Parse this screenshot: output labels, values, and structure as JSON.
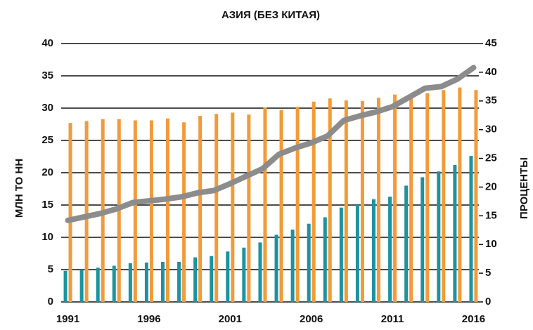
{
  "chart_data": {
    "type": "bar_line",
    "title": "АЗИЯ (БЕЗ КИТАЯ)",
    "ylabel": "МЛН ТО НН",
    "y2label": "ПРОЦЕНТЫ",
    "categories": [
      "1991",
      null,
      null,
      null,
      null,
      "1996",
      null,
      null,
      null,
      null,
      "2001",
      null,
      null,
      null,
      null,
      "2006",
      null,
      null,
      null,
      null,
      "2011",
      null,
      null,
      null,
      null,
      "2016"
    ],
    "series": [
      {
        "type": "bar",
        "color": "#1c93a0",
        "values": [
          4.8,
          5.0,
          5.3,
          5.6,
          6.0,
          6.1,
          6.2,
          6.2,
          6.9,
          7.1,
          7.8,
          8.4,
          9.2,
          10.4,
          11.2,
          12.1,
          13.1,
          14.6,
          15.0,
          15.9,
          16.3,
          18.0,
          19.3,
          20.2,
          21.2,
          22.6
        ]
      },
      {
        "type": "bar",
        "color": "#f39a3a",
        "values": [
          27.7,
          28.0,
          28.3,
          28.3,
          28.1,
          28.1,
          28.4,
          27.8,
          28.8,
          29.1,
          29.3,
          29.0,
          30.1,
          29.7,
          30.2,
          31.0,
          31.5,
          31.2,
          31.1,
          31.6,
          32.1,
          31.7,
          32.3,
          32.8,
          33.2,
          32.8
        ]
      },
      {
        "type": "line",
        "axis": "y2",
        "color": "#8c8c8c",
        "values": [
          14.2,
          14.8,
          15.4,
          16.2,
          17.3,
          17.6,
          17.9,
          18.3,
          19.0,
          19.4,
          20.6,
          21.9,
          23.2,
          25.7,
          26.8,
          27.7,
          28.9,
          31.6,
          32.4,
          33.1,
          34.0,
          35.6,
          37.2,
          37.5,
          38.8,
          40.8
        ]
      }
    ],
    "ylim": [
      0,
      40
    ],
    "yticks": [
      0,
      5,
      10,
      15,
      20,
      25,
      30,
      35,
      40
    ],
    "y2lim": [
      0,
      45
    ],
    "y2ticks": [
      0,
      5,
      10,
      15,
      20,
      25,
      30,
      35,
      40,
      45
    ],
    "grid": true
  }
}
